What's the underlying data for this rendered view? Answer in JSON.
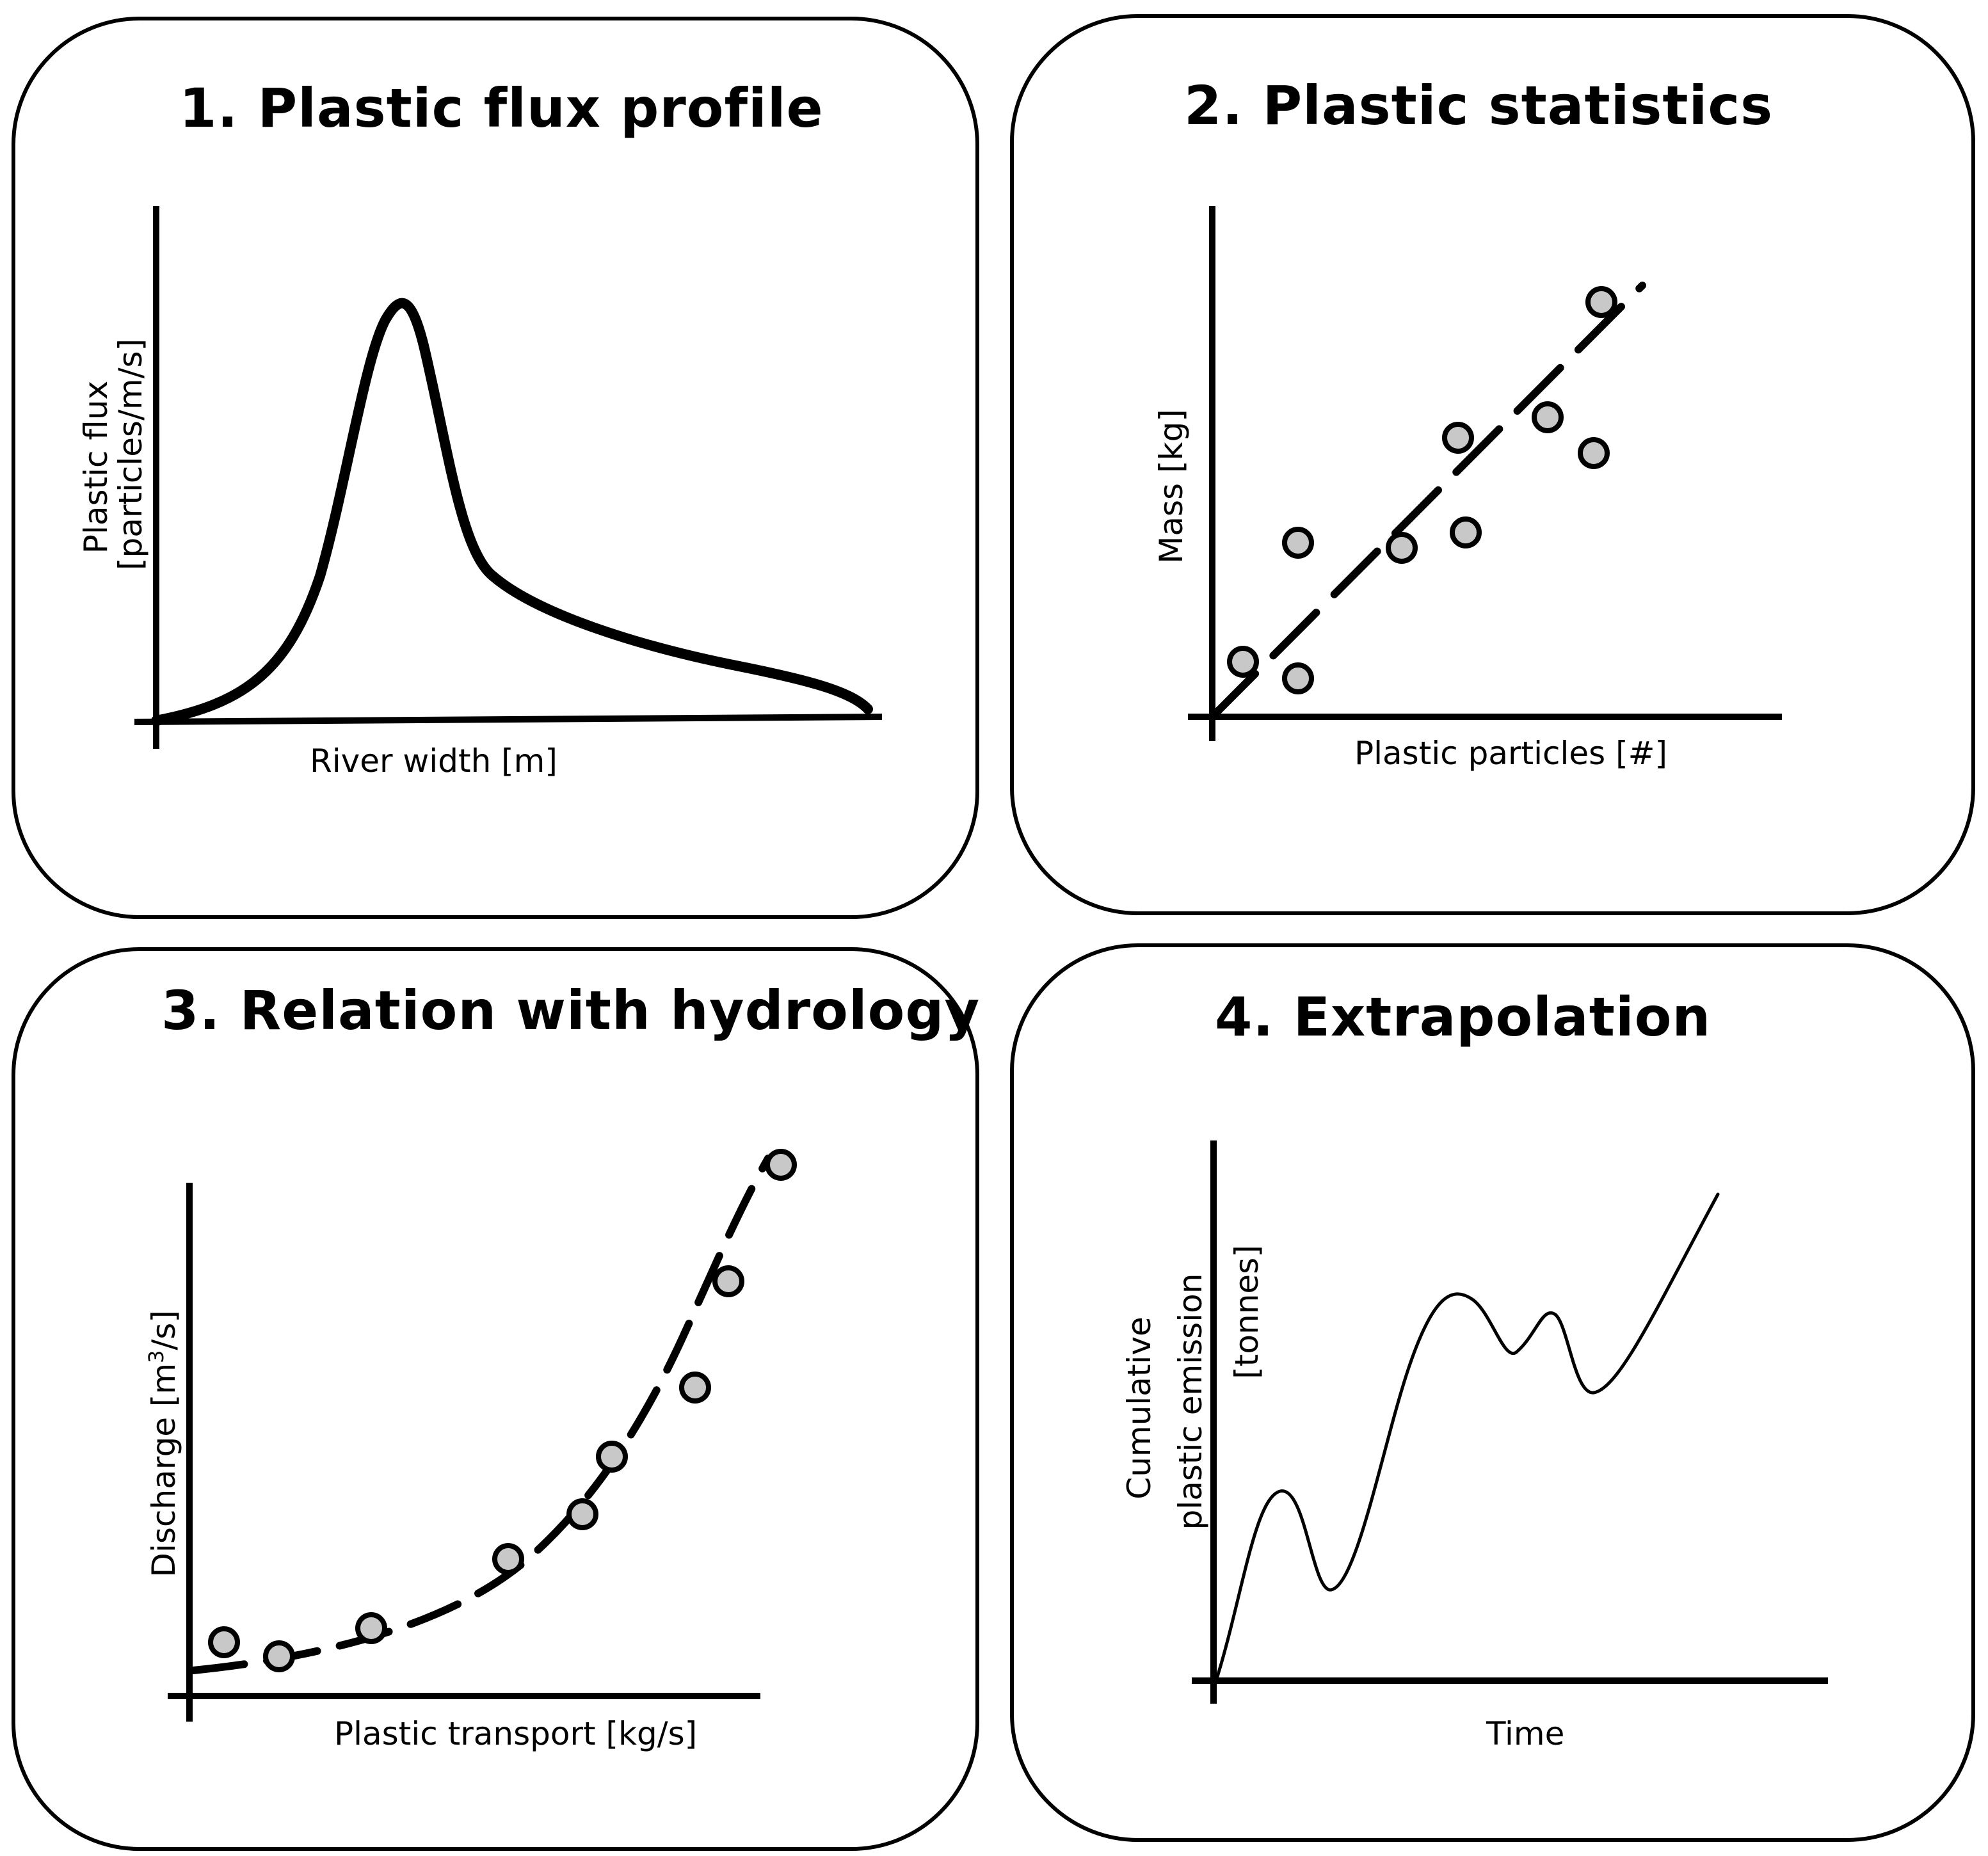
{
  "panels": [
    {
      "title": "1. Plastic flux profile",
      "xlabel": "River width [m]",
      "ylabel_line1": "Plastic flux",
      "ylabel_line2": "[particles/m/s]"
    },
    {
      "title": "2. Plastic statistics",
      "xlabel": "Plastic particles [#]",
      "ylabel": "Mass [kg]"
    },
    {
      "title": "3. Relation with hydrology",
      "xlabel": "Plastic transport [kg/s]",
      "ylabel_pre": "Discharge [m",
      "ylabel_sup": "3",
      "ylabel_post": "/s]"
    },
    {
      "title": "4. Extrapolation",
      "xlabel": "Time",
      "ylabel_line1": "Cumulative",
      "ylabel_line2": "plastic emission",
      "ylabel_line3": "[tonnes]"
    }
  ],
  "colors": {
    "stroke": "#000000",
    "point_fill": "#c8c8c8",
    "background": "#ffffff"
  }
}
